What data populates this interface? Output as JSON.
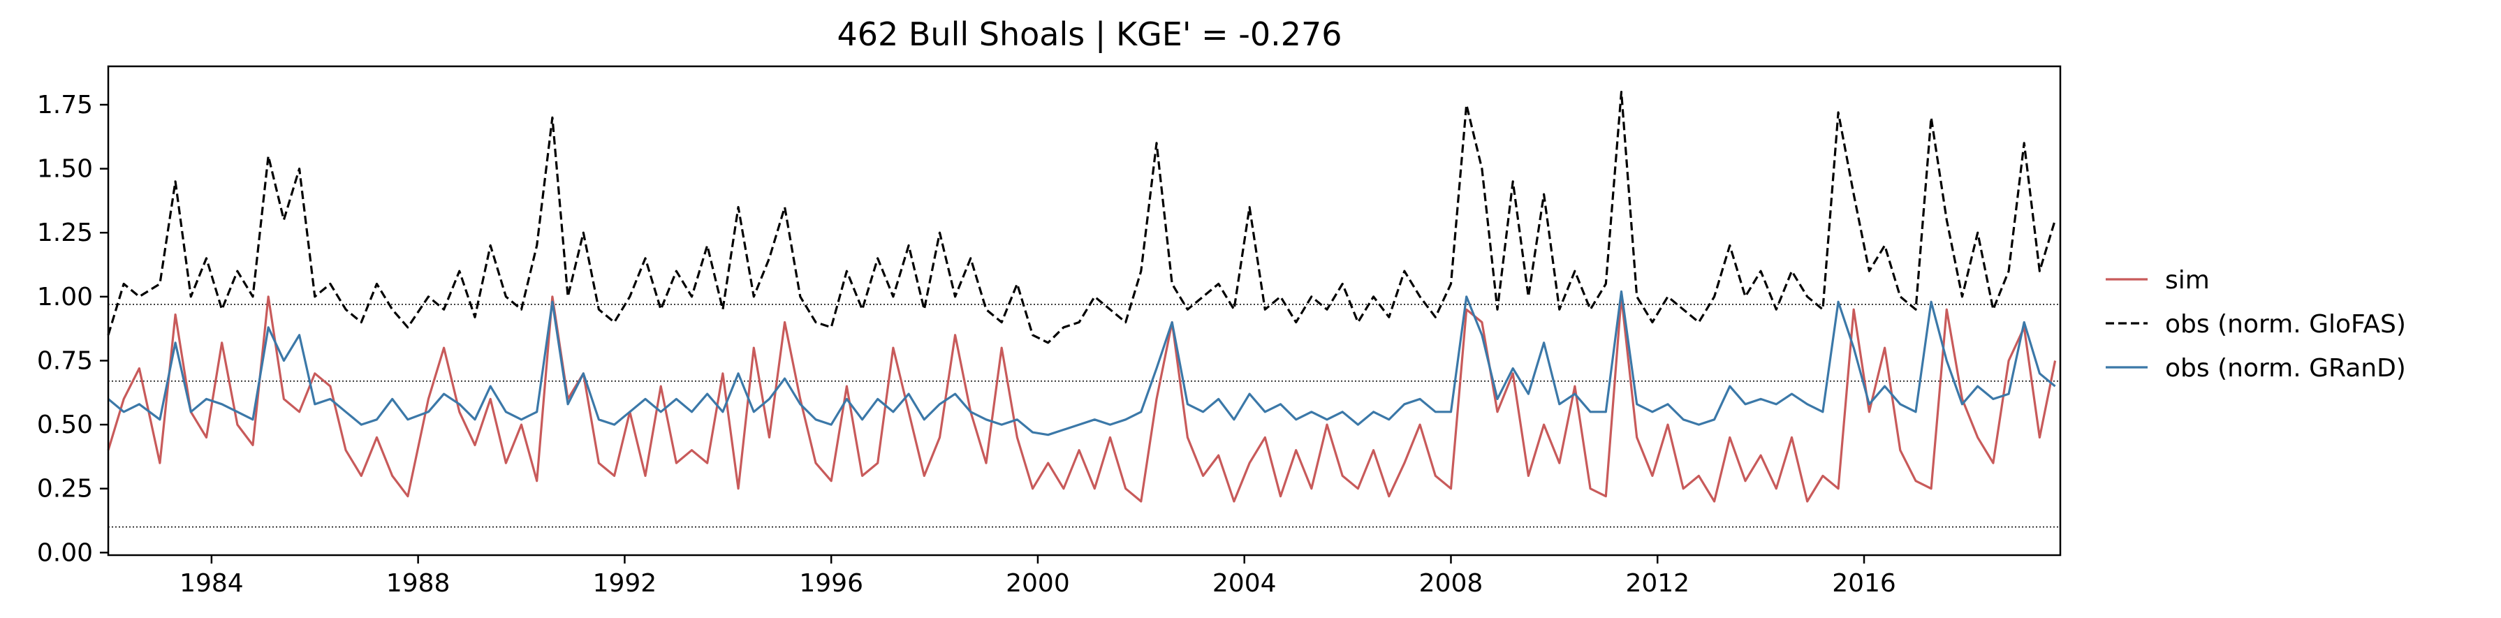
{
  "chart_data": {
    "type": "line",
    "title": "462  Bull Shoals | KGE' = -0.276",
    "xlabel": "",
    "ylabel": "",
    "xlim": [
      1982.0,
      2019.8
    ],
    "ylim": [
      -0.01,
      1.9
    ],
    "x_ticks": [
      1984,
      1988,
      1992,
      1996,
      2000,
      2004,
      2008,
      2012,
      2016
    ],
    "x_tick_labels": [
      "1984",
      "1988",
      "1992",
      "1996",
      "2000",
      "2004",
      "2008",
      "2012",
      "2016"
    ],
    "y_ticks": [
      0.0,
      0.25,
      0.5,
      0.75,
      1.0,
      1.25,
      1.5,
      1.75
    ],
    "y_tick_labels": [
      "0.00",
      "0.25",
      "0.50",
      "0.75",
      "1.00",
      "1.25",
      "1.50",
      "1.75"
    ],
    "reference_lines": [
      0.1,
      0.67,
      0.97
    ],
    "grid": false,
    "legend_position": "right",
    "series": [
      {
        "name": "sim",
        "color": "#c85a5a",
        "style": "solid",
        "x": [
          1982.0,
          1982.3,
          1982.6,
          1983.0,
          1983.3,
          1983.6,
          1983.9,
          1984.2,
          1984.5,
          1984.8,
          1985.1,
          1985.4,
          1985.7,
          1986.0,
          1986.3,
          1986.6,
          1986.9,
          1987.2,
          1987.5,
          1987.8,
          1988.2,
          1988.5,
          1988.8,
          1989.1,
          1989.4,
          1989.7,
          1990.0,
          1990.3,
          1990.6,
          1990.9,
          1991.2,
          1991.5,
          1991.8,
          1992.1,
          1992.4,
          1992.7,
          1993.0,
          1993.3,
          1993.6,
          1993.9,
          1994.2,
          1994.5,
          1994.8,
          1995.1,
          1995.4,
          1995.7,
          1996.0,
          1996.3,
          1996.6,
          1996.9,
          1997.2,
          1997.5,
          1997.8,
          1998.1,
          1998.4,
          1998.7,
          1999.0,
          1999.3,
          1999.6,
          1999.9,
          2000.2,
          2000.5,
          2000.8,
          2001.1,
          2001.4,
          2001.7,
          2002.0,
          2002.3,
          2002.6,
          2002.9,
          2003.2,
          2003.5,
          2003.8,
          2004.1,
          2004.4,
          2004.7,
          2005.0,
          2005.3,
          2005.6,
          2005.9,
          2006.2,
          2006.5,
          2006.8,
          2007.1,
          2007.4,
          2007.7,
          2008.0,
          2008.3,
          2008.6,
          2008.9,
          2009.2,
          2009.5,
          2009.8,
          2010.1,
          2010.4,
          2010.7,
          2011.0,
          2011.3,
          2011.6,
          2011.9,
          2012.2,
          2012.5,
          2012.8,
          2013.1,
          2013.4,
          2013.7,
          2014.0,
          2014.3,
          2014.6,
          2014.9,
          2015.2,
          2015.5,
          2015.8,
          2016.1,
          2016.4,
          2016.7,
          2017.0,
          2017.3,
          2017.6,
          2017.9,
          2018.2,
          2018.5,
          2018.8,
          2019.1,
          2019.4,
          2019.7
        ],
        "values": [
          0.4,
          0.6,
          0.72,
          0.35,
          0.93,
          0.55,
          0.45,
          0.82,
          0.5,
          0.42,
          1.0,
          0.6,
          0.55,
          0.7,
          0.65,
          0.4,
          0.3,
          0.45,
          0.3,
          0.22,
          0.6,
          0.8,
          0.55,
          0.42,
          0.6,
          0.35,
          0.5,
          0.28,
          1.0,
          0.6,
          0.7,
          0.35,
          0.3,
          0.55,
          0.3,
          0.65,
          0.35,
          0.4,
          0.35,
          0.7,
          0.25,
          0.8,
          0.45,
          0.9,
          0.6,
          0.35,
          0.28,
          0.65,
          0.3,
          0.35,
          0.8,
          0.55,
          0.3,
          0.45,
          0.85,
          0.55,
          0.35,
          0.8,
          0.45,
          0.25,
          0.35,
          0.25,
          0.4,
          0.25,
          0.45,
          0.25,
          0.2,
          0.6,
          0.9,
          0.45,
          0.3,
          0.38,
          0.2,
          0.35,
          0.45,
          0.22,
          0.4,
          0.25,
          0.5,
          0.3,
          0.25,
          0.4,
          0.22,
          0.35,
          0.5,
          0.3,
          0.25,
          0.95,
          0.9,
          0.55,
          0.7,
          0.3,
          0.5,
          0.35,
          0.65,
          0.25,
          0.22,
          1.0,
          0.45,
          0.3,
          0.5,
          0.25,
          0.3,
          0.2,
          0.45,
          0.28,
          0.38,
          0.25,
          0.45,
          0.2,
          0.3,
          0.25,
          0.95,
          0.55,
          0.8,
          0.4,
          0.28,
          0.25,
          0.95,
          0.6,
          0.45,
          0.35,
          0.75,
          0.88,
          0.45,
          0.75
        ]
      },
      {
        "name": "obs (norm. GloFAS)",
        "color": "#000000",
        "style": "dashed",
        "x": [
          1982.0,
          1982.3,
          1982.6,
          1983.0,
          1983.3,
          1983.6,
          1983.9,
          1984.2,
          1984.5,
          1984.8,
          1985.1,
          1985.4,
          1985.7,
          1986.0,
          1986.3,
          1986.6,
          1986.9,
          1987.2,
          1987.5,
          1987.8,
          1988.2,
          1988.5,
          1988.8,
          1989.1,
          1989.4,
          1989.7,
          1990.0,
          1990.3,
          1990.6,
          1990.9,
          1991.2,
          1991.5,
          1991.8,
          1992.1,
          1992.4,
          1992.7,
          1993.0,
          1993.3,
          1993.6,
          1993.9,
          1994.2,
          1994.5,
          1994.8,
          1995.1,
          1995.4,
          1995.7,
          1996.0,
          1996.3,
          1996.6,
          1996.9,
          1997.2,
          1997.5,
          1997.8,
          1998.1,
          1998.4,
          1998.7,
          1999.0,
          1999.3,
          1999.6,
          1999.9,
          2000.2,
          2000.5,
          2000.8,
          2001.1,
          2001.4,
          2001.7,
          2002.0,
          2002.3,
          2002.6,
          2002.9,
          2003.2,
          2003.5,
          2003.8,
          2004.1,
          2004.4,
          2004.7,
          2005.0,
          2005.3,
          2005.6,
          2005.9,
          2006.2,
          2006.5,
          2006.8,
          2007.1,
          2007.4,
          2007.7,
          2008.0,
          2008.3,
          2008.6,
          2008.9,
          2009.2,
          2009.5,
          2009.8,
          2010.1,
          2010.4,
          2010.7,
          2011.0,
          2011.3,
          2011.6,
          2011.9,
          2012.2,
          2012.5,
          2012.8,
          2013.1,
          2013.4,
          2013.7,
          2014.0,
          2014.3,
          2014.6,
          2014.9,
          2015.2,
          2015.5,
          2015.8,
          2016.1,
          2016.4,
          2016.7,
          2017.0,
          2017.3,
          2017.6,
          2017.9,
          2018.2,
          2018.5,
          2018.8,
          2019.1,
          2019.4,
          2019.7
        ],
        "values": [
          0.85,
          1.05,
          1.0,
          1.05,
          1.45,
          1.0,
          1.15,
          0.95,
          1.1,
          1.0,
          1.55,
          1.3,
          1.5,
          1.0,
          1.05,
          0.95,
          0.9,
          1.05,
          0.95,
          0.88,
          1.0,
          0.95,
          1.1,
          0.92,
          1.2,
          1.0,
          0.95,
          1.2,
          1.7,
          1.0,
          1.25,
          0.95,
          0.9,
          1.0,
          1.15,
          0.95,
          1.1,
          1.0,
          1.2,
          0.95,
          1.35,
          1.0,
          1.15,
          1.35,
          1.0,
          0.9,
          0.88,
          1.1,
          0.95,
          1.15,
          1.0,
          1.2,
          0.95,
          1.25,
          1.0,
          1.15,
          0.95,
          0.9,
          1.05,
          0.85,
          0.82,
          0.88,
          0.9,
          1.0,
          0.95,
          0.9,
          1.1,
          1.6,
          1.05,
          0.95,
          1.0,
          1.05,
          0.95,
          1.35,
          0.95,
          1.0,
          0.9,
          1.0,
          0.95,
          1.05,
          0.9,
          1.0,
          0.92,
          1.1,
          1.0,
          0.92,
          1.05,
          1.75,
          1.5,
          0.95,
          1.45,
          1.0,
          1.4,
          0.95,
          1.1,
          0.95,
          1.05,
          1.8,
          1.0,
          0.9,
          1.0,
          0.95,
          0.9,
          1.0,
          1.2,
          1.0,
          1.1,
          0.95,
          1.1,
          1.0,
          0.95,
          1.72,
          1.4,
          1.1,
          1.2,
          1.0,
          0.95,
          1.7,
          1.3,
          1.0,
          1.25,
          0.95,
          1.1,
          1.6,
          1.1,
          1.3
        ]
      },
      {
        "name": "obs (norm. GRanD)",
        "color": "#3b78a8",
        "style": "solid",
        "x": [
          1982.0,
          1982.3,
          1982.6,
          1983.0,
          1983.3,
          1983.6,
          1983.9,
          1984.2,
          1984.5,
          1984.8,
          1985.1,
          1985.4,
          1985.7,
          1986.0,
          1986.3,
          1986.6,
          1986.9,
          1987.2,
          1987.5,
          1987.8,
          1988.2,
          1988.5,
          1988.8,
          1989.1,
          1989.4,
          1989.7,
          1990.0,
          1990.3,
          1990.6,
          1990.9,
          1991.2,
          1991.5,
          1991.8,
          1992.1,
          1992.4,
          1992.7,
          1993.0,
          1993.3,
          1993.6,
          1993.9,
          1994.2,
          1994.5,
          1994.8,
          1995.1,
          1995.4,
          1995.7,
          1996.0,
          1996.3,
          1996.6,
          1996.9,
          1997.2,
          1997.5,
          1997.8,
          1998.1,
          1998.4,
          1998.7,
          1999.0,
          1999.3,
          1999.6,
          1999.9,
          2000.2,
          2000.5,
          2000.8,
          2001.1,
          2001.4,
          2001.7,
          2002.0,
          2002.3,
          2002.6,
          2002.9,
          2003.2,
          2003.5,
          2003.8,
          2004.1,
          2004.4,
          2004.7,
          2005.0,
          2005.3,
          2005.6,
          2005.9,
          2006.2,
          2006.5,
          2006.8,
          2007.1,
          2007.4,
          2007.7,
          2008.0,
          2008.3,
          2008.6,
          2008.9,
          2009.2,
          2009.5,
          2009.8,
          2010.1,
          2010.4,
          2010.7,
          2011.0,
          2011.3,
          2011.6,
          2011.9,
          2012.2,
          2012.5,
          2012.8,
          2013.1,
          2013.4,
          2013.7,
          2014.0,
          2014.3,
          2014.6,
          2014.9,
          2015.2,
          2015.5,
          2015.8,
          2016.1,
          2016.4,
          2016.7,
          2017.0,
          2017.3,
          2017.6,
          2017.9,
          2018.2,
          2018.5,
          2018.8,
          2019.1,
          2019.4,
          2019.7
        ],
        "values": [
          0.6,
          0.55,
          0.58,
          0.52,
          0.82,
          0.55,
          0.6,
          0.58,
          0.55,
          0.52,
          0.88,
          0.75,
          0.85,
          0.58,
          0.6,
          0.55,
          0.5,
          0.52,
          0.6,
          0.52,
          0.55,
          0.62,
          0.58,
          0.52,
          0.65,
          0.55,
          0.52,
          0.55,
          0.98,
          0.58,
          0.7,
          0.52,
          0.5,
          0.55,
          0.6,
          0.55,
          0.6,
          0.55,
          0.62,
          0.55,
          0.7,
          0.55,
          0.6,
          0.68,
          0.58,
          0.52,
          0.5,
          0.6,
          0.52,
          0.6,
          0.55,
          0.62,
          0.52,
          0.58,
          0.62,
          0.55,
          0.52,
          0.5,
          0.52,
          0.47,
          0.46,
          0.48,
          0.5,
          0.52,
          0.5,
          0.52,
          0.55,
          0.72,
          0.9,
          0.58,
          0.55,
          0.6,
          0.52,
          0.62,
          0.55,
          0.58,
          0.52,
          0.55,
          0.52,
          0.55,
          0.5,
          0.55,
          0.52,
          0.58,
          0.6,
          0.55,
          0.55,
          1.0,
          0.85,
          0.6,
          0.72,
          0.62,
          0.82,
          0.58,
          0.62,
          0.55,
          0.55,
          1.02,
          0.58,
          0.55,
          0.58,
          0.52,
          0.5,
          0.52,
          0.65,
          0.58,
          0.6,
          0.58,
          0.62,
          0.58,
          0.55,
          0.98,
          0.8,
          0.58,
          0.65,
          0.58,
          0.55,
          0.98,
          0.75,
          0.58,
          0.65,
          0.6,
          0.62,
          0.9,
          0.7,
          0.65
        ]
      }
    ]
  }
}
